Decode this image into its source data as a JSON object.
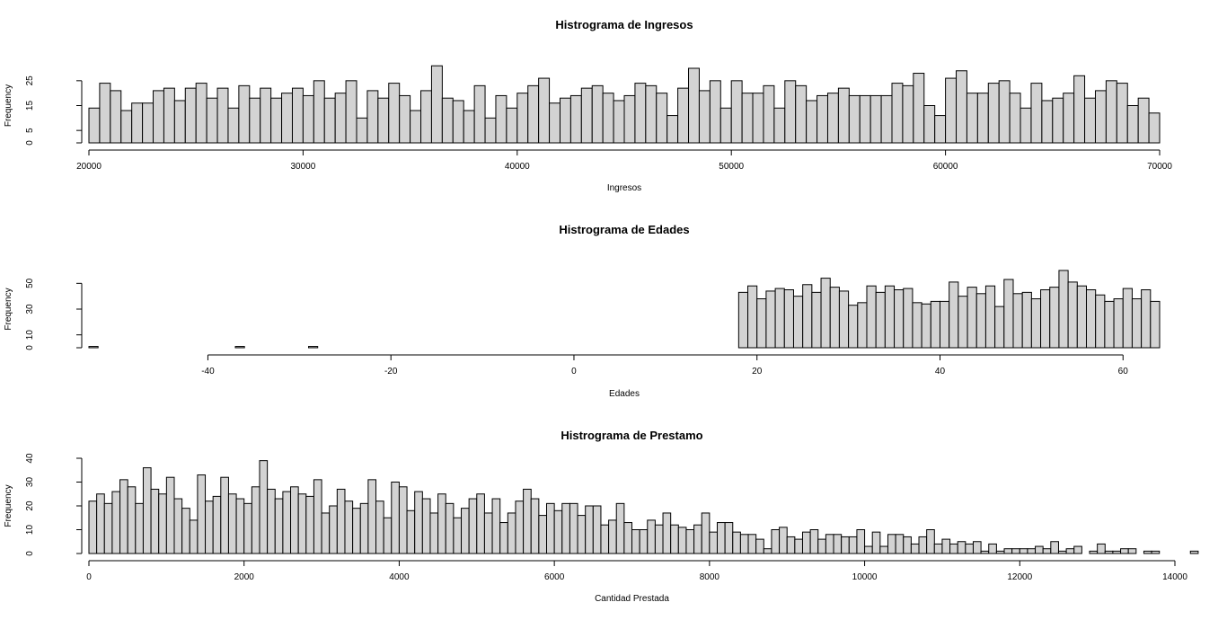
{
  "chart_data": [
    {
      "type": "bar",
      "title": "Histrograma de Ingresos",
      "xlabel": "Ingresos",
      "ylabel": "Frequency",
      "xlim": [
        20000,
        70000
      ],
      "ylim": [
        0,
        30
      ],
      "xticks": [
        20000,
        30000,
        40000,
        50000,
        60000,
        70000
      ],
      "yticks": [
        0,
        5,
        15,
        25
      ],
      "bin_width": 500,
      "bin_start": 20000,
      "values": [
        14,
        24,
        21,
        13,
        16,
        16,
        21,
        22,
        17,
        22,
        24,
        18,
        22,
        14,
        23,
        18,
        22,
        18,
        20,
        22,
        19,
        25,
        18,
        20,
        25,
        10,
        21,
        18,
        24,
        19,
        13,
        21,
        31,
        18,
        17,
        13,
        23,
        10,
        19,
        14,
        20,
        23,
        26,
        16,
        18,
        19,
        22,
        23,
        20,
        17,
        19,
        24,
        23,
        20,
        11,
        22,
        30,
        21,
        25,
        14,
        25,
        20,
        20,
        23,
        14,
        25,
        23,
        17,
        19,
        20,
        22,
        19,
        19,
        19,
        19,
        24,
        23,
        28,
        15,
        11,
        26,
        29,
        20,
        20,
        24,
        25,
        20,
        14,
        24,
        17,
        18,
        20,
        27,
        18,
        21,
        25,
        24,
        15,
        18,
        12
      ]
    },
    {
      "type": "bar",
      "title": "Histrograma de Edades",
      "xlabel": "Edades",
      "ylabel": "Frequency",
      "xlim": [
        -53,
        64
      ],
      "ylim": [
        0,
        60
      ],
      "xticks": [
        -40,
        -20,
        0,
        20,
        40,
        60
      ],
      "yticks": [
        0,
        10,
        30,
        50
      ],
      "bin_width": 1,
      "bin_start": -53,
      "values": [
        1,
        0,
        0,
        0,
        0,
        0,
        0,
        0,
        0,
        0,
        0,
        0,
        0,
        0,
        0,
        0,
        1,
        0,
        0,
        0,
        0,
        0,
        0,
        0,
        1,
        0,
        0,
        0,
        0,
        0,
        0,
        0,
        0,
        0,
        0,
        0,
        0,
        0,
        0,
        0,
        0,
        0,
        0,
        0,
        0,
        0,
        0,
        0,
        0,
        0,
        0,
        0,
        0,
        0,
        0,
        0,
        0,
        0,
        0,
        0,
        0,
        0,
        0,
        0,
        0,
        0,
        0,
        0,
        0,
        0,
        0,
        43,
        48,
        38,
        44,
        46,
        45,
        40,
        49,
        43,
        54,
        47,
        44,
        33,
        35,
        48,
        43,
        48,
        45,
        46,
        35,
        34,
        36,
        36,
        51,
        40,
        47,
        42,
        48,
        32,
        53,
        42,
        43,
        38,
        45,
        47,
        60,
        51,
        48,
        45,
        41,
        36,
        38,
        46,
        38,
        45,
        36
      ]
    },
    {
      "type": "bar",
      "title": "Histrograma de Prestamo",
      "xlabel": "Cantidad Prestada",
      "ylabel": "Frequency",
      "xlim": [
        0,
        14000
      ],
      "ylim": [
        0,
        40
      ],
      "xticks": [
        0,
        2000,
        4000,
        6000,
        8000,
        10000,
        12000,
        14000
      ],
      "yticks": [
        0,
        10,
        20,
        30,
        40
      ],
      "bin_width": 100,
      "bin_start": 0,
      "values": [
        22,
        25,
        21,
        26,
        31,
        28,
        21,
        36,
        27,
        25,
        32,
        23,
        19,
        14,
        33,
        22,
        24,
        32,
        25,
        23,
        21,
        28,
        39,
        27,
        23,
        26,
        28,
        25,
        24,
        31,
        17,
        20,
        27,
        22,
        19,
        21,
        31,
        22,
        15,
        30,
        28,
        18,
        26,
        23,
        17,
        25,
        21,
        15,
        19,
        23,
        25,
        17,
        23,
        13,
        17,
        22,
        27,
        23,
        16,
        21,
        18,
        21,
        21,
        16,
        20,
        20,
        12,
        14,
        21,
        13,
        10,
        10,
        14,
        12,
        17,
        12,
        11,
        10,
        12,
        17,
        9,
        13,
        13,
        9,
        8,
        8,
        6,
        2,
        10,
        11,
        7,
        6,
        9,
        10,
        6,
        8,
        8,
        7,
        7,
        10,
        3,
        9,
        3,
        8,
        8,
        7,
        4,
        7,
        10,
        4,
        6,
        4,
        5,
        4,
        5,
        1,
        4,
        1,
        2,
        2,
        2,
        2,
        3,
        2,
        5,
        1,
        2,
        3,
        0,
        1,
        4,
        1,
        1,
        2,
        2,
        0,
        1,
        1,
        0,
        0,
        0,
        0,
        1
      ]
    }
  ]
}
